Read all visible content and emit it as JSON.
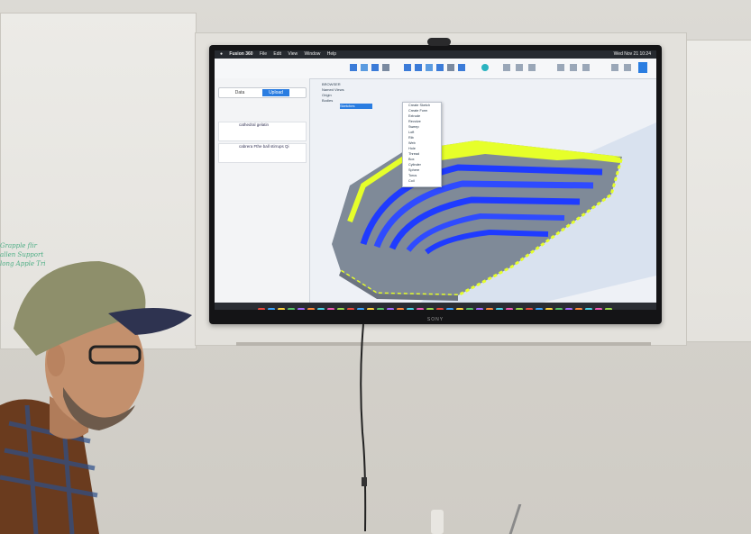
{
  "screen": {
    "menubar": {
      "app": "Fusion 360",
      "items": [
        "File",
        "Edit",
        "View",
        "Window",
        "Help"
      ],
      "clock": "Wed Nov 21 10:24"
    },
    "panel": {
      "tabs": [
        "Data",
        "Upload"
      ],
      "files": [
        {
          "name": "cathedral gelatin"
        },
        {
          "name": "cabrera Fthe ball stirrups Qi"
        }
      ]
    },
    "browser_items": [
      "BROWSER",
      "Named Views",
      "Origin",
      "Bodies",
      "Sketches"
    ],
    "dropdown_items": [
      "Create Sketch",
      "Create Form",
      "Extrude",
      "Revolve",
      "Sweep",
      "Loft",
      "Rib",
      "Web",
      "Hole",
      "Thread",
      "Box",
      "Cylinder",
      "Sphere",
      "Torus",
      "Coil",
      "Pipe"
    ]
  },
  "tv_brand": "SONY",
  "whiteboard_text": [
    "Grapple flir",
    "allen Support",
    "long Apple Tri"
  ],
  "colors": {
    "yellow": "#e6ff2a",
    "blue": "#1f3bff",
    "grey": "#9aa0a8",
    "wall": "#d6d3cd"
  }
}
